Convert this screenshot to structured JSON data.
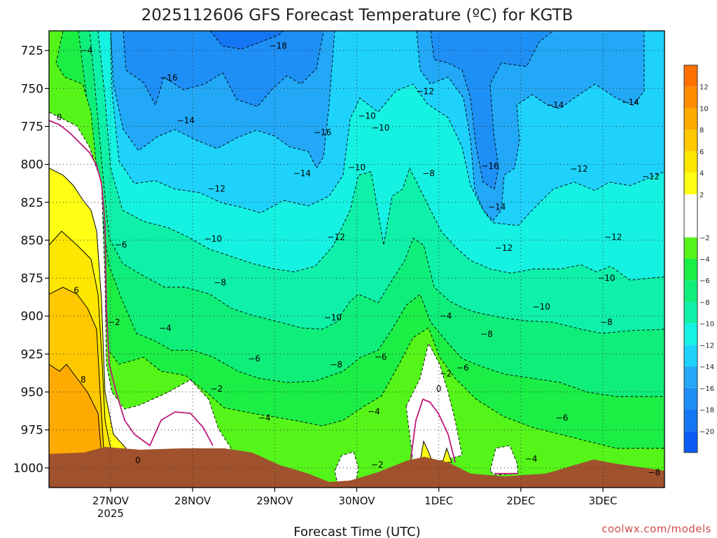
{
  "chart_data": {
    "type": "heatmap",
    "title": "2025112606 GFS Forecast Temperature (ºC) for KGTB",
    "xlabel": "Forecast Time (UTC)",
    "ylabel": "",
    "y_axis": {
      "ticks": [
        725,
        750,
        775,
        800,
        825,
        850,
        875,
        900,
        925,
        950,
        975,
        1000
      ],
      "range": [
        712,
        1013
      ],
      "inverted": true
    },
    "x_axis": {
      "ticks": [
        {
          "label": "27NOV",
          "sublabel": "2025",
          "hour": 18
        },
        {
          "label": "28NOV",
          "sublabel": "",
          "hour": 42
        },
        {
          "label": "29NOV",
          "sublabel": "",
          "hour": 66
        },
        {
          "label": "30NOV",
          "sublabel": "",
          "hour": 90
        },
        {
          "label": "1DEC",
          "sublabel": "",
          "hour": 114
        },
        {
          "label": "2DEC",
          "sublabel": "",
          "hour": 138
        },
        {
          "label": "3DEC",
          "sublabel": "",
          "hour": 162
        }
      ],
      "range": [
        0,
        180
      ]
    },
    "grid": true,
    "colorbar": {
      "position": "right",
      "bins": [
        {
          "lo": -22,
          "hi": -20,
          "color": "#0a5cf5"
        },
        {
          "lo": -20,
          "hi": -18,
          "color": "#1476f2"
        },
        {
          "lo": -18,
          "hi": -16,
          "color": "#1e8ff5"
        },
        {
          "lo": -16,
          "hi": -14,
          "color": "#22a8f6"
        },
        {
          "lo": -14,
          "hi": -12,
          "color": "#1ed2fb"
        },
        {
          "lo": -12,
          "hi": -10,
          "color": "#16f2e2"
        },
        {
          "lo": -10,
          "hi": -8,
          "color": "#0ff0a8"
        },
        {
          "lo": -8,
          "hi": -6,
          "color": "#10ee7a"
        },
        {
          "lo": -6,
          "hi": -4,
          "color": "#1bee45"
        },
        {
          "lo": -4,
          "hi": -2,
          "color": "#55f51a"
        },
        {
          "lo": -2,
          "hi": 2,
          "color": "#ffffff"
        },
        {
          "lo": 2,
          "hi": 4,
          "color": "#ffff14"
        },
        {
          "lo": 4,
          "hi": 6,
          "color": "#ffe600"
        },
        {
          "lo": 6,
          "hi": 8,
          "color": "#ffc800"
        },
        {
          "lo": 8,
          "hi": 10,
          "color": "#ffaa00"
        },
        {
          "lo": 10,
          "hi": 12,
          "color": "#ff8c00"
        },
        {
          "lo": 12,
          "hi": 14,
          "color": "#ff7000"
        }
      ],
      "tick_labels": [
        "12",
        "10",
        "8",
        "6",
        "4",
        "2",
        "−2",
        "−4",
        "−6",
        "−8",
        "−10",
        "−12",
        "−14",
        "−16",
        "−18",
        "−20"
      ]
    },
    "terrain_color": "#a0522d",
    "contour_labels": [
      {
        "text": "−18",
        "hour": 67,
        "p": 722
      },
      {
        "text": "−16",
        "hour": 35,
        "p": 743
      },
      {
        "text": "−16",
        "hour": 80,
        "p": 779
      },
      {
        "text": "−16",
        "hour": 129,
        "p": 801
      },
      {
        "text": "−14",
        "hour": 40,
        "p": 771
      },
      {
        "text": "−14",
        "hour": 74,
        "p": 806
      },
      {
        "text": "−14",
        "hour": 131,
        "p": 828
      },
      {
        "text": "−14",
        "hour": 148,
        "p": 761
      },
      {
        "text": "−14",
        "hour": 170,
        "p": 759
      },
      {
        "text": "−12",
        "hour": 49,
        "p": 816
      },
      {
        "text": "−12",
        "hour": 84,
        "p": 848
      },
      {
        "text": "−12",
        "hour": 110,
        "p": 752
      },
      {
        "text": "−12",
        "hour": 133,
        "p": 855
      },
      {
        "text": "−12",
        "hour": 155,
        "p": 803
      },
      {
        "text": "−12",
        "hour": 165,
        "p": 848
      },
      {
        "text": "−12",
        "hour": 176,
        "p": 808
      },
      {
        "text": "−10",
        "hour": 48,
        "p": 849
      },
      {
        "text": "−10",
        "hour": 83,
        "p": 901
      },
      {
        "text": "−10",
        "hour": 93,
        "p": 768
      },
      {
        "text": "−10",
        "hour": 90,
        "p": 802
      },
      {
        "text": "−10",
        "hour": 97,
        "p": 776
      },
      {
        "text": "−10",
        "hour": 144,
        "p": 894
      },
      {
        "text": "−10",
        "hour": 163,
        "p": 875
      },
      {
        "text": "−8",
        "hour": 50,
        "p": 878
      },
      {
        "text": "−8",
        "hour": 84,
        "p": 932
      },
      {
        "text": "−8",
        "hour": 111,
        "p": 806
      },
      {
        "text": "−8",
        "hour": 128,
        "p": 912
      },
      {
        "text": "−8",
        "hour": 163,
        "p": 904
      },
      {
        "text": "−8",
        "hour": 177,
        "p": 1003
      },
      {
        "text": "−6",
        "hour": 21,
        "p": 853
      },
      {
        "text": "−6",
        "hour": 60,
        "p": 928
      },
      {
        "text": "−6",
        "hour": 97,
        "p": 927
      },
      {
        "text": "−6",
        "hour": 121,
        "p": 934
      },
      {
        "text": "−6",
        "hour": 150,
        "p": 967
      },
      {
        "text": "−4",
        "hour": 11,
        "p": 725
      },
      {
        "text": "−4",
        "hour": 34,
        "p": 908
      },
      {
        "text": "−4",
        "hour": 63,
        "p": 967
      },
      {
        "text": "−4",
        "hour": 95,
        "p": 963
      },
      {
        "text": "−4",
        "hour": 116,
        "p": 900
      },
      {
        "text": "−4",
        "hour": 141,
        "p": 994
      },
      {
        "text": "−2",
        "hour": 19,
        "p": 904
      },
      {
        "text": "−2",
        "hour": 49,
        "p": 948
      },
      {
        "text": "−2",
        "hour": 96,
        "p": 998
      },
      {
        "text": "−2",
        "hour": 116,
        "p": 938
      },
      {
        "text": "0",
        "hour": 3,
        "p": 769
      },
      {
        "text": "0",
        "hour": 26,
        "p": 995
      },
      {
        "text": "0",
        "hour": 114,
        "p": 948
      },
      {
        "text": "6",
        "hour": 8,
        "p": 883
      },
      {
        "text": "8",
        "hour": 10,
        "p": 942
      }
    ]
  },
  "credit": "coolwx.com/models"
}
